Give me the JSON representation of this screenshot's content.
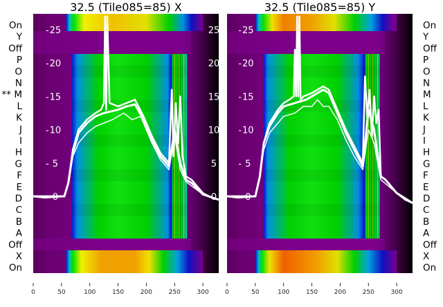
{
  "chart_data": [
    {
      "type": "heatmap",
      "title": "32.5 (Tile085=85) X",
      "row_labels": [
        "On",
        "Y",
        "Off",
        "P",
        "O",
        "N",
        "** M",
        "L",
        "K",
        "J",
        "I",
        "H",
        "G",
        "F",
        "E",
        "D",
        "C",
        "B",
        "A",
        "Off",
        "X",
        "On"
      ],
      "xticks": [
        "0",
        "50",
        "100",
        "150",
        "200",
        "250",
        "300"
      ],
      "yticks": [
        "0",
        "5",
        "10",
        "15",
        "20",
        "25"
      ],
      "xlim": [
        0,
        328
      ],
      "ylim": [
        -7,
        28
      ],
      "bands": [
        {
          "name": "top-on",
          "x": [
            58,
            300
          ],
          "stops": [
            [
              58,
              "#1010d0"
            ],
            [
              64,
              "#00c0c0"
            ],
            [
              72,
              "#00e000"
            ],
            [
              90,
              "#f0f000"
            ],
            [
              140,
              "#f0c000"
            ],
            [
              200,
              "#e0e000"
            ],
            [
              240,
              "#00d000"
            ],
            [
              265,
              "#0090e0"
            ],
            [
              280,
              "#1010c0"
            ],
            [
              300,
              "#7a0090"
            ]
          ]
        },
        {
          "name": "main",
          "x": [
            68,
            272
          ],
          "stops": [
            [
              68,
              "#1010d0"
            ],
            [
              78,
              "#0090e0"
            ],
            [
              95,
              "#00b080"
            ],
            [
              115,
              "#00d000"
            ],
            [
              150,
              "#10e010"
            ],
            [
              200,
              "#00d000"
            ],
            [
              220,
              "#00b070"
            ],
            [
              238,
              "#0090e0"
            ],
            [
              244,
              "#1010d0"
            ],
            [
              248,
              "#00c000"
            ],
            [
              260,
              "#00a000"
            ],
            [
              272,
              "#00d0a0"
            ]
          ]
        },
        {
          "name": "bottom-on",
          "x": [
            58,
            300
          ],
          "stops": [
            [
              58,
              "#1010d0"
            ],
            [
              64,
              "#00c0c0"
            ],
            [
              70,
              "#00e000"
            ],
            [
              85,
              "#f0f000"
            ],
            [
              120,
              "#f0a000"
            ],
            [
              180,
              "#f0a000"
            ],
            [
              205,
              "#f0e000"
            ],
            [
              230,
              "#00d000"
            ],
            [
              255,
              "#00a0e0"
            ],
            [
              275,
              "#1010c0"
            ],
            [
              300,
              "#7a0090"
            ]
          ]
        }
      ],
      "series": [
        {
          "name": "line-1",
          "x": [
            0,
            20,
            55,
            62,
            70,
            80,
            95,
            110,
            120,
            125,
            127,
            129,
            131,
            135,
            150,
            165,
            180,
            195,
            210,
            225,
            240,
            245,
            248,
            252,
            256,
            260,
            264,
            268,
            270,
            280,
            290,
            300,
            315,
            328
          ],
          "y": [
            0,
            -0.2,
            0,
            2,
            7,
            10,
            11.5,
            12.5,
            13,
            14,
            27,
            13,
            27,
            14,
            13.5,
            14,
            14.5,
            12,
            9,
            6.5,
            5,
            16,
            6,
            14,
            8,
            15,
            6,
            4,
            3,
            2.5,
            1.5,
            0.5,
            -0.2,
            -0.5
          ]
        },
        {
          "name": "line-2",
          "x": [
            0,
            55,
            62,
            70,
            80,
            95,
            110,
            125,
            150,
            165,
            180,
            195,
            210,
            225,
            240,
            250,
            260,
            270,
            280,
            300,
            328
          ],
          "y": [
            0,
            0,
            2,
            6.5,
            9.5,
            11,
            12,
            12.5,
            13,
            13.5,
            13.8,
            11.5,
            8.5,
            6,
            4.5,
            10,
            5,
            2.5,
            2,
            0.3,
            -0.5
          ]
        },
        {
          "name": "line-3",
          "x": [
            0,
            55,
            62,
            70,
            80,
            95,
            110,
            125,
            140,
            160,
            175,
            190,
            210,
            225,
            240,
            250,
            260,
            270,
            300,
            328
          ],
          "y": [
            0,
            0,
            2,
            6,
            8,
            9.5,
            10.5,
            11,
            11.5,
            12.5,
            11.5,
            12,
            8,
            5.5,
            4,
            9,
            4,
            2.2,
            0.3,
            -0.5
          ]
        }
      ]
    },
    {
      "type": "heatmap",
      "title": "32.5 (Tile085=85) Y",
      "row_labels": [
        "On",
        "Y",
        "Off",
        "P",
        "O",
        "N",
        "M",
        "L",
        "K",
        "J",
        "I",
        "H",
        "G",
        "F",
        "E",
        "D",
        "C",
        "B",
        "A",
        "Off",
        "X",
        "On"
      ],
      "xticks": [
        "0",
        "50",
        "100",
        "150",
        "200",
        "250",
        "300"
      ],
      "yticks": [
        "0",
        "5",
        "10",
        "15",
        "20",
        "25"
      ],
      "xlim": [
        0,
        328
      ],
      "ylim": [
        -7,
        28
      ],
      "bands": [
        {
          "name": "top-on",
          "x": [
            50,
            300
          ],
          "stops": [
            [
              50,
              "#1010d0"
            ],
            [
              56,
              "#00c0c0"
            ],
            [
              64,
              "#00e000"
            ],
            [
              80,
              "#f0e000"
            ],
            [
              100,
              "#f08000"
            ],
            [
              150,
              "#f0a000"
            ],
            [
              190,
              "#e0e000"
            ],
            [
              225,
              "#00d000"
            ],
            [
              255,
              "#00a0e0"
            ],
            [
              275,
              "#1010c0"
            ],
            [
              295,
              "#7a0090"
            ]
          ]
        },
        {
          "name": "main",
          "x": [
            65,
            270
          ],
          "stops": [
            [
              65,
              "#1010d0"
            ],
            [
              72,
              "#0090e0"
            ],
            [
              90,
              "#00b080"
            ],
            [
              110,
              "#00d000"
            ],
            [
              150,
              "#10e010"
            ],
            [
              195,
              "#00d000"
            ],
            [
              215,
              "#00b070"
            ],
            [
              232,
              "#0090e0"
            ],
            [
              243,
              "#1010d0"
            ],
            [
              246,
              "#00c000"
            ],
            [
              258,
              "#00a000"
            ],
            [
              270,
              "#00d060"
            ]
          ]
        },
        {
          "name": "bottom-on",
          "x": [
            50,
            300
          ],
          "stops": [
            [
              50,
              "#1010d0"
            ],
            [
              56,
              "#00c0c0"
            ],
            [
              62,
              "#00e000"
            ],
            [
              75,
              "#f0e000"
            ],
            [
              100,
              "#f06000"
            ],
            [
              160,
              "#f0a000"
            ],
            [
              195,
              "#e0e000"
            ],
            [
              225,
              "#00d000"
            ],
            [
              250,
              "#00a0e0"
            ],
            [
              275,
              "#1010c0"
            ],
            [
              300,
              "#7a0090"
            ]
          ]
        }
      ],
      "series": [
        {
          "name": "line-1",
          "x": [
            0,
            20,
            50,
            58,
            65,
            75,
            90,
            100,
            110,
            118,
            120,
            122,
            124,
            126,
            128,
            130,
            135,
            150,
            170,
            180,
            195,
            210,
            225,
            240,
            244,
            248,
            252,
            256,
            260,
            264,
            268,
            272,
            280,
            290,
            300,
            315,
            328
          ],
          "y": [
            0,
            -0.2,
            0,
            3,
            8,
            11,
            13,
            14,
            14.5,
            15,
            22,
            15,
            27,
            15,
            27,
            14.5,
            15,
            15.5,
            16.5,
            16,
            13,
            10,
            7.5,
            5,
            18,
            12,
            16,
            9,
            15,
            11,
            13,
            3,
            2.5,
            1.5,
            0.5,
            -0.5,
            -1
          ]
        },
        {
          "name": "line-2",
          "x": [
            0,
            50,
            58,
            65,
            75,
            90,
            100,
            120,
            140,
            160,
            170,
            180,
            195,
            210,
            225,
            240,
            250,
            260,
            272,
            280,
            300,
            328
          ],
          "y": [
            0,
            0,
            3,
            8,
            10.5,
            12.5,
            13.5,
            14,
            14.5,
            15.5,
            16,
            15.5,
            12.5,
            9.5,
            7,
            4.5,
            13,
            10,
            3,
            2.5,
            0.5,
            -1
          ]
        },
        {
          "name": "line-3",
          "x": [
            0,
            50,
            58,
            65,
            75,
            90,
            100,
            120,
            135,
            150,
            160,
            170,
            180,
            195,
            210,
            225,
            240,
            250,
            260,
            272,
            300,
            328
          ],
          "y": [
            0,
            0,
            3,
            7,
            9.5,
            11,
            12,
            12.5,
            13.5,
            13.5,
            14.5,
            13.5,
            13.5,
            11.5,
            8.5,
            6,
            4,
            10,
            8,
            2.5,
            0.5,
            -1
          ]
        }
      ]
    }
  ]
}
